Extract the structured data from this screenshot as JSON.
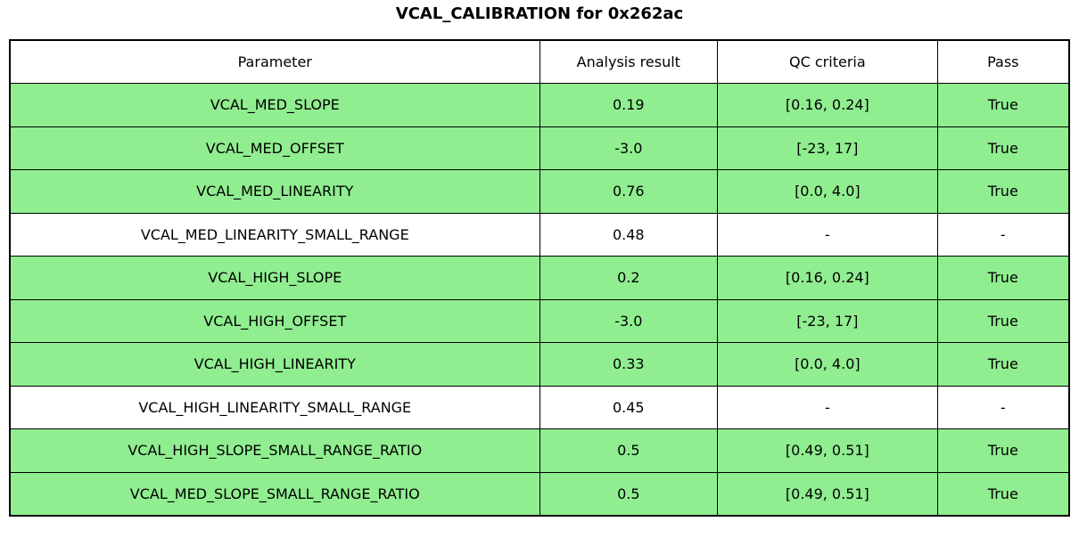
{
  "title": "VCAL_CALIBRATION for 0x262ac",
  "colors": {
    "row_pass_green": "#90ee90",
    "row_neutral_white": "#ffffff",
    "border_black": "#000000",
    "text_black": "#000000"
  },
  "chart_data": {
    "type": "table",
    "title": "VCAL_CALIBRATION for 0x262ac",
    "columns": [
      "Parameter",
      "Analysis result",
      "QC criteria",
      "Pass"
    ],
    "rows": [
      {
        "parameter": "VCAL_MED_SLOPE",
        "analysis_result": "0.19",
        "qc_criteria": "[0.16, 0.24]",
        "pass": "True",
        "highlight": true
      },
      {
        "parameter": "VCAL_MED_OFFSET",
        "analysis_result": "-3.0",
        "qc_criteria": "[-23, 17]",
        "pass": "True",
        "highlight": true
      },
      {
        "parameter": "VCAL_MED_LINEARITY",
        "analysis_result": "0.76",
        "qc_criteria": "[0.0, 4.0]",
        "pass": "True",
        "highlight": true
      },
      {
        "parameter": "VCAL_MED_LINEARITY_SMALL_RANGE",
        "analysis_result": "0.48",
        "qc_criteria": "-",
        "pass": "-",
        "highlight": false
      },
      {
        "parameter": "VCAL_HIGH_SLOPE",
        "analysis_result": "0.2",
        "qc_criteria": "[0.16, 0.24]",
        "pass": "True",
        "highlight": true
      },
      {
        "parameter": "VCAL_HIGH_OFFSET",
        "analysis_result": "-3.0",
        "qc_criteria": "[-23, 17]",
        "pass": "True",
        "highlight": true
      },
      {
        "parameter": "VCAL_HIGH_LINEARITY",
        "analysis_result": "0.33",
        "qc_criteria": "[0.0, 4.0]",
        "pass": "True",
        "highlight": true
      },
      {
        "parameter": "VCAL_HIGH_LINEARITY_SMALL_RANGE",
        "analysis_result": "0.45",
        "qc_criteria": "-",
        "pass": "-",
        "highlight": false
      },
      {
        "parameter": "VCAL_HIGH_SLOPE_SMALL_RANGE_RATIO",
        "analysis_result": "0.5",
        "qc_criteria": "[0.49, 0.51]",
        "pass": "True",
        "highlight": true
      },
      {
        "parameter": "VCAL_MED_SLOPE_SMALL_RANGE_RATIO",
        "analysis_result": "0.5",
        "qc_criteria": "[0.49, 0.51]",
        "pass": "True",
        "highlight": true
      }
    ]
  }
}
